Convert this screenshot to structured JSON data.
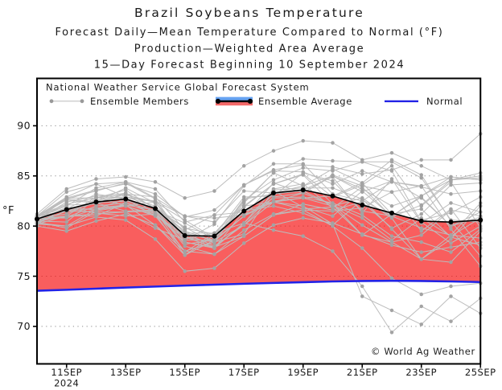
{
  "title": {
    "line1": "Brazil Soybeans Temperature",
    "line2": "Forecast Daily—Mean Temperature Compared to Normal (°F)",
    "line3": "Production—Weighted Area Average",
    "line4": "15—Day Forecast Beginning 10 September 2024"
  },
  "legend": {
    "header": "National Weather Service Global Forecast System",
    "ensemble_members_label": "Ensemble Members",
    "ensemble_average_label": "Ensemble Average",
    "normal_label": "Normal"
  },
  "watermark": "© World Ag Weather",
  "colors": {
    "ensemble_member_line": "#bdbdbd",
    "ensemble_member_marker": "#a3a3a3",
    "ensemble_average": "#000000",
    "normal_line": "#2222e6",
    "above_normal_fill": "rgba(246,10,10,0.66)",
    "legend_capsule_blue": "#66a3f2",
    "legend_capsule_red": "#f46a6a",
    "gridline": "#8c8c8c",
    "axis": "#000000"
  },
  "chart_data": {
    "type": "line",
    "grid": "dotted-horizontal",
    "legend_position": "top-inside",
    "x": [
      "10SEP",
      "11SEP",
      "12SEP",
      "13SEP",
      "14SEP",
      "15SEP",
      "16SEP",
      "17SEP",
      "18SEP",
      "19SEP",
      "20SEP",
      "21SEP",
      "22SEP",
      "23SEP",
      "24SEP",
      "25SEP"
    ],
    "xtick_labels": [
      "11SEP",
      "13SEP",
      "15SEP",
      "17SEP",
      "19SEP",
      "21SEP",
      "23SEP",
      "25SEP"
    ],
    "xtick_year": "2024",
    "yticks": [
      "70",
      "75",
      "80",
      "85",
      "90"
    ],
    "ylim": [
      66.3,
      94.7
    ],
    "ylabel": "°F",
    "title": "Brazil Soybeans Temperature",
    "series": [
      {
        "name": "Ensemble Average",
        "values": [
          80.7,
          81.65,
          82.4,
          82.7,
          81.75,
          79.05,
          79.0,
          81.5,
          83.3,
          83.6,
          83.0,
          82.1,
          81.3,
          80.5,
          80.4,
          80.6
        ]
      },
      {
        "name": "Normal",
        "values": [
          73.55,
          73.65,
          73.76,
          73.87,
          73.97,
          74.07,
          74.16,
          74.25,
          74.33,
          74.41,
          74.48,
          74.53,
          74.55,
          74.53,
          74.48,
          74.42
        ]
      }
    ],
    "ensemble_members": [
      [
        81.2,
        83.7,
        84.7,
        84.9,
        84.4,
        82.8,
        83.5,
        86.0,
        87.5,
        88.5,
        88.3,
        86.6,
        87.3,
        86.0,
        84.6,
        85.3
      ],
      [
        81.0,
        82.8,
        83.6,
        84.2,
        83.2,
        80.9,
        81.6,
        84.1,
        85.6,
        86.1,
        85.9,
        85.2,
        85.6,
        86.6,
        86.6,
        89.2
      ],
      [
        80.2,
        80.0,
        80.9,
        80.6,
        78.7,
        75.5,
        75.8,
        78.3,
        80.1,
        80.8,
        80.3,
        79.2,
        78.1,
        77.4,
        77.9,
        78.4
      ],
      [
        80.5,
        80.9,
        82.0,
        82.3,
        81.2,
        78.4,
        77.9,
        80.3,
        79.6,
        79.0,
        77.5,
        74.0,
        69.4,
        72.0,
        70.5,
        72.8
      ],
      [
        80.8,
        81.2,
        82.6,
        82.9,
        82.0,
        79.3,
        78.6,
        81.0,
        82.4,
        82.0,
        80.2,
        73.0,
        71.6,
        70.2,
        73.0,
        71.3
      ],
      [
        80.0,
        79.5,
        80.5,
        81.2,
        80.1,
        77.5,
        77.2,
        79.6,
        81.2,
        81.6,
        80.0,
        77.8,
        74.8,
        73.2,
        74.0,
        74.3
      ],
      [
        80.7,
        81.0,
        82.9,
        82.0,
        81.1,
        78.7,
        79.3,
        80.3,
        83.2,
        83.6,
        84.9,
        81.3,
        84.7,
        80.3,
        82.3,
        81.4
      ],
      [
        80.6,
        81.0,
        81.0,
        82.3,
        81.6,
        78.0,
        77.2,
        79.0,
        81.1,
        82.2,
        81.6,
        82.4,
        79.8,
        81.2,
        84.1,
        84.3
      ],
      [
        81.0,
        81.5,
        82.3,
        81.5,
        81.6,
        79.0,
        77.8,
        80.3,
        83.7,
        84.2,
        81.8,
        83.9,
        80.9,
        82.1,
        84.6,
        84.8
      ],
      [
        81.0,
        81.5,
        82.3,
        83.2,
        82.9,
        79.6,
        81.1,
        81.4,
        83.5,
        81.9,
        81.0,
        83.5,
        81.0,
        83.0,
        84.9,
        84.6
      ],
      [
        80.4,
        81.5,
        81.4,
        81.4,
        79.8,
        78.6,
        80.2,
        84.0,
        86.2,
        86.2,
        83.2,
        82.5,
        84.4,
        84.0,
        79.7,
        76.0
      ],
      [
        80.8,
        80.8,
        81.7,
        82.0,
        82.4,
        78.4,
        77.8,
        81.5,
        82.0,
        81.3,
        80.1,
        82.6,
        81.0,
        79.8,
        79.1,
        82.3
      ],
      [
        80.9,
        82.1,
        82.2,
        83.3,
        81.2,
        78.9,
        78.4,
        80.1,
        82.4,
        81.7,
        81.9,
        79.1,
        78.4,
        76.7,
        76.4,
        79.5
      ],
      [
        80.9,
        82.7,
        82.4,
        83.8,
        82.3,
        79.3,
        79.3,
        82.4,
        85.3,
        84.0,
        85.0,
        83.7,
        82.0,
        83.0,
        84.6,
        85.0
      ],
      [
        81.0,
        82.9,
        84.2,
        84.4,
        83.7,
        80.4,
        81.1,
        84.1,
        85.5,
        85.4,
        84.2,
        85.5,
        84.4,
        83.9,
        83.2,
        83.5
      ],
      [
        80.2,
        81.0,
        81.2,
        81.4,
        81.5,
        77.4,
        79.3,
        82.0,
        84.2,
        85.1,
        82.2,
        79.1,
        81.2,
        80.6,
        81.3,
        82.9
      ],
      [
        80.2,
        81.9,
        81.6,
        82.1,
        81.6,
        80.3,
        78.7,
        82.0,
        82.4,
        82.8,
        83.0,
        84.3,
        81.2,
        81.7,
        78.9,
        78.1
      ],
      [
        81.0,
        81.8,
        81.3,
        81.0,
        81.2,
        77.1,
        78.6,
        82.3,
        85.3,
        86.7,
        86.5,
        86.4,
        86.4,
        84.8,
        80.6,
        80.4
      ],
      [
        80.9,
        82.6,
        82.3,
        82.5,
        81.8,
        79.8,
        79.2,
        81.5,
        82.4,
        83.3,
        85.0,
        83.4,
        84.5,
        82.8,
        80.0,
        80.9
      ],
      [
        80.6,
        82.8,
        82.8,
        83.3,
        81.8,
        79.5,
        78.5,
        81.0,
        84.3,
        83.3,
        82.1,
        80.1,
        78.4,
        79.1,
        81.6,
        81.0
      ],
      [
        80.5,
        80.4,
        82.8,
        82.9,
        82.4,
        78.9,
        77.9,
        79.0,
        81.1,
        81.6,
        81.5,
        81.8,
        83.4,
        84.0,
        84.9,
        84.6
      ],
      [
        80.9,
        82.0,
        83.8,
        84.4,
        82.8,
        81.0,
        80.4,
        83.5,
        83.3,
        84.0,
        85.7,
        84.3,
        86.6,
        85.1,
        80.5,
        77.0
      ],
      [
        81.0,
        82.7,
        83.5,
        84.3,
        82.7,
        78.6,
        78.6,
        82.7,
        83.2,
        83.5,
        82.1,
        80.8,
        78.6,
        80.8,
        79.0,
        80.8
      ],
      [
        80.4,
        79.8,
        81.5,
        82.0,
        81.0,
        77.5,
        78.4,
        79.2,
        83.6,
        83.8,
        83.8,
        82.7,
        79.7,
        76.7,
        79.1,
        78.8
      ],
      [
        80.6,
        82.4,
        83.0,
        83.1,
        82.4,
        80.6,
        78.8,
        81.9,
        84.2,
        85.2,
        82.9,
        84.1,
        86.0,
        82.0,
        84.4,
        79.8
      ],
      [
        80.3,
        80.0,
        81.7,
        82.7,
        81.7,
        78.2,
        78.6,
        81.0,
        82.8,
        82.9,
        82.3,
        81.1,
        79.0,
        78.4,
        77.4,
        79.7
      ],
      [
        81.0,
        82.2,
        82.8,
        83.6,
        81.7,
        79.9,
        78.3,
        82.6,
        84.6,
        85.8,
        85.5,
        86.4,
        85.5,
        80.4,
        78.3,
        80.0
      ],
      [
        80.8,
        81.7,
        83.2,
        82.7,
        81.0,
        79.3,
        78.0,
        80.1,
        82.9,
        83.3,
        85.1,
        84.0,
        83.4,
        79.5,
        81.7,
        77.8
      ],
      [
        80.3,
        81.5,
        81.8,
        82.1,
        80.1,
        77.1,
        79.1,
        82.9,
        83.0,
        85.3,
        84.5,
        81.5,
        81.0,
        82.9,
        80.0,
        81.4
      ],
      [
        81.0,
        83.4,
        84.2,
        82.9,
        82.5,
        81.0,
        80.8,
        81.1,
        82.5,
        82.8,
        82.0,
        82.8,
        80.8,
        76.7,
        78.7,
        82.0
      ]
    ]
  }
}
